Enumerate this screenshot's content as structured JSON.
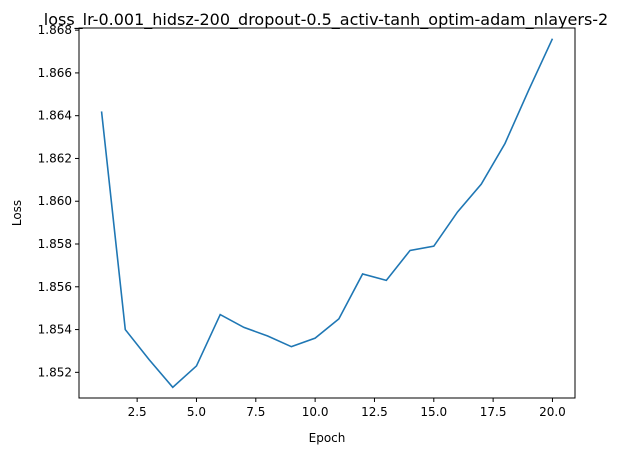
{
  "chart_data": {
    "type": "line",
    "title": "loss_lr-0.001_hidsz-200_dropout-0.5_activ-tanh_optim-adam_nlayers-2",
    "xlabel": "Epoch",
    "ylabel": "Loss",
    "xlim": [
      0.05,
      20.95
    ],
    "ylim": [
      1.8508,
      1.8681
    ],
    "xticks": [
      2.5,
      5.0,
      7.5,
      10.0,
      12.5,
      15.0,
      17.5,
      20.0
    ],
    "xtick_labels": [
      "2.5",
      "5.0",
      "7.5",
      "10.0",
      "12.5",
      "15.0",
      "17.5",
      "20.0"
    ],
    "yticks": [
      1.852,
      1.854,
      1.856,
      1.858,
      1.86,
      1.862,
      1.864,
      1.866,
      1.868
    ],
    "ytick_labels": [
      "1.852",
      "1.854",
      "1.856",
      "1.858",
      "1.860",
      "1.862",
      "1.864",
      "1.866",
      "1.868"
    ],
    "grid": false,
    "series": [
      {
        "color": "#1f77b4",
        "x": [
          1,
          2,
          3,
          4,
          5,
          6,
          7,
          8,
          9,
          10,
          11,
          12,
          13,
          14,
          15,
          16,
          17,
          18,
          19,
          20
        ],
        "y": [
          1.8642,
          1.854,
          1.8526,
          1.8513,
          1.8523,
          1.8547,
          1.8541,
          1.8537,
          1.8532,
          1.8536,
          1.8545,
          1.8566,
          1.8563,
          1.8577,
          1.8579,
          1.8595,
          1.8608,
          1.8627,
          1.8652,
          1.8676
        ]
      }
    ]
  }
}
